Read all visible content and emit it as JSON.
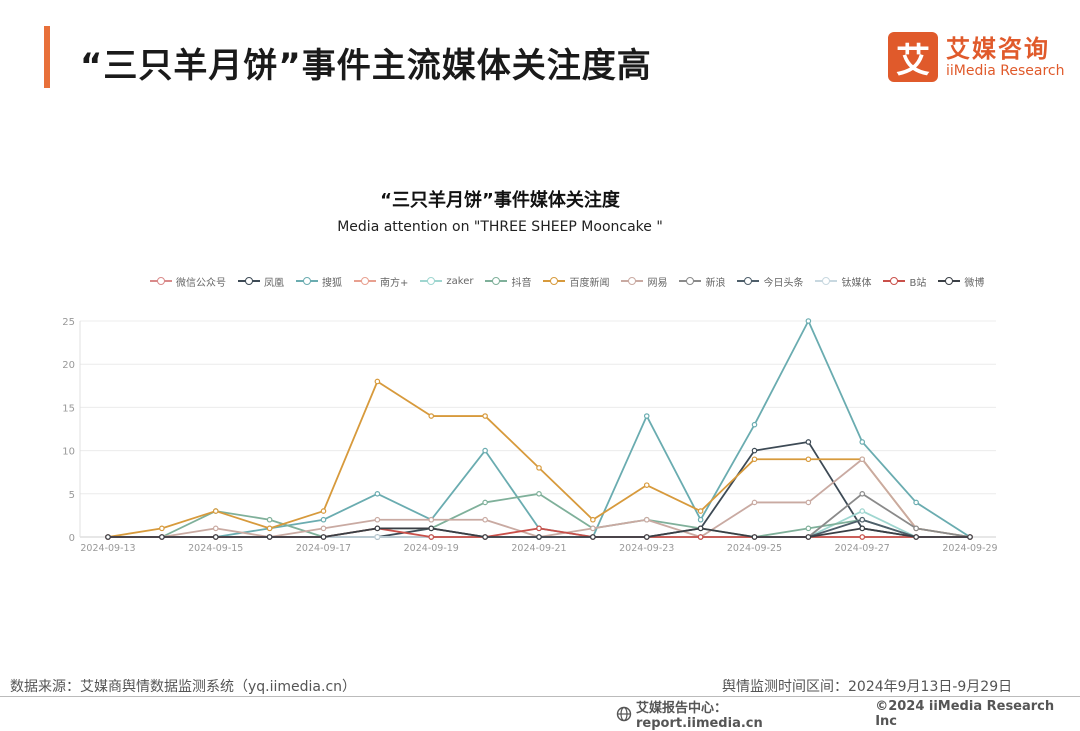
{
  "header": {
    "title": "“三只羊月饼”事件主流媒体关注度高",
    "logo_mark": "艾",
    "logo_cn": "艾媒咨询",
    "logo_en": "iiMedia Research",
    "accent_color": "#e8703a",
    "brand_color": "#e05a2b"
  },
  "footer": {
    "source": "数据来源：艾媒商舆情数据监测系统（yq.iimedia.cn）",
    "period": "舆情监测时间区间：2024年9月13日-9月29日",
    "report_center": "艾媒报告中心：report.iimedia.cn",
    "copyright": "©2024  iiMedia Research  Inc"
  },
  "chart_data": {
    "type": "line",
    "title": "“三只羊月饼”事件媒体关注度",
    "subtitle": "Media attention on \"THREE SHEEP Mooncake \"",
    "xlabel": "",
    "ylabel": "",
    "ylim": [
      0,
      25
    ],
    "yticks": [
      "0",
      "5",
      "10",
      "15",
      "20",
      "25"
    ],
    "categories": [
      "2024-09-13",
      "2024-09-14",
      "2024-09-15",
      "2024-09-16",
      "2024-09-17",
      "2024-09-18",
      "2024-09-19",
      "2024-09-20",
      "2024-09-21",
      "2024-09-22",
      "2024-09-23",
      "2024-09-24",
      "2024-09-25",
      "2024-09-26",
      "2024-09-27",
      "2024-09-28",
      "2024-09-29"
    ],
    "xtick_labels": [
      "2024-09-13",
      "2024-09-15",
      "2024-09-17",
      "2024-09-19",
      "2024-09-21",
      "2024-09-23",
      "2024-09-25",
      "2024-09-27",
      "2024-09-29"
    ],
    "legend_position": "top-center",
    "series": [
      {
        "name": "微信公众号",
        "color": "#d98a8a",
        "values": [
          0,
          0,
          0,
          0,
          0,
          0,
          0,
          0,
          0,
          0,
          0,
          0,
          0,
          0,
          0,
          0,
          0
        ]
      },
      {
        "name": "凤凰",
        "color": "#3d4a55",
        "values": [
          0,
          0,
          0,
          0,
          0,
          0,
          1,
          0,
          0,
          0,
          0,
          1,
          10,
          11,
          1,
          0,
          0
        ]
      },
      {
        "name": "搜狐",
        "color": "#6aacb0",
        "values": [
          0,
          0,
          0,
          1,
          2,
          5,
          2,
          10,
          1,
          0,
          14,
          2,
          13,
          25,
          11,
          4,
          0
        ]
      },
      {
        "name": "南方+",
        "color": "#e8a090",
        "values": [
          0,
          0,
          0,
          0,
          0,
          0,
          0,
          0,
          0,
          0,
          0,
          0,
          0,
          0,
          0,
          0,
          0
        ]
      },
      {
        "name": "zaker",
        "color": "#9fd6d0",
        "values": [
          0,
          0,
          0,
          0,
          0,
          0,
          0,
          0,
          0,
          0,
          0,
          0,
          0,
          0,
          3,
          0,
          0
        ]
      },
      {
        "name": "抖音",
        "color": "#7fb09a",
        "values": [
          0,
          0,
          3,
          2,
          0,
          1,
          1,
          4,
          5,
          1,
          2,
          1,
          0,
          1,
          2,
          0,
          0
        ]
      },
      {
        "name": "百度新闻",
        "color": "#d79a3c",
        "values": [
          0,
          1,
          3,
          1,
          3,
          18,
          14,
          14,
          8,
          2,
          6,
          3,
          9,
          9,
          9,
          1,
          0
        ]
      },
      {
        "name": "网易",
        "color": "#c9aaa2",
        "values": [
          0,
          0,
          1,
          0,
          1,
          2,
          2,
          2,
          0,
          1,
          2,
          0,
          4,
          4,
          9,
          1,
          0
        ]
      },
      {
        "name": "新浪",
        "color": "#8a8a8a",
        "values": [
          0,
          0,
          0,
          0,
          0,
          0,
          0,
          0,
          0,
          0,
          0,
          0,
          0,
          0,
          5,
          1,
          0
        ]
      },
      {
        "name": "今日头条",
        "color": "#4e5e6a",
        "values": [
          0,
          0,
          0,
          0,
          0,
          0,
          0,
          0,
          0,
          0,
          0,
          0,
          0,
          0,
          2,
          0,
          0
        ]
      },
      {
        "name": "钛媒体",
        "color": "#c8d8e0",
        "values": [
          0,
          0,
          0,
          0,
          0,
          0,
          0,
          0,
          0,
          0,
          0,
          0,
          0,
          0,
          0,
          0,
          0
        ]
      },
      {
        "name": "B站",
        "color": "#c9504a",
        "values": [
          0,
          0,
          0,
          0,
          0,
          1,
          0,
          0,
          1,
          0,
          0,
          0,
          0,
          0,
          0,
          0,
          0
        ]
      },
      {
        "name": "微博",
        "color": "#3a3f45",
        "values": [
          0,
          0,
          0,
          0,
          0,
          1,
          1,
          0,
          0,
          0,
          0,
          1,
          0,
          0,
          1,
          0,
          0
        ]
      }
    ]
  }
}
